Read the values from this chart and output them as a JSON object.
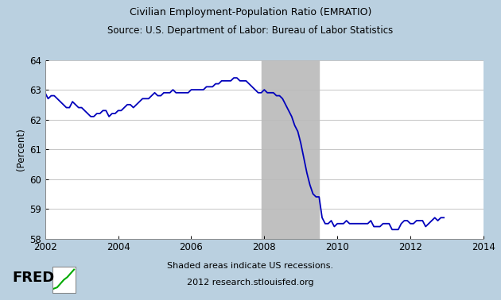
{
  "title_line1": "Civilian Employment-Population Ratio (EMRATIO)",
  "title_line2": "Source: U.S. Department of Labor: Bureau of Labor Statistics",
  "ylabel": "(Percent)",
  "bg_outer": "#bad0e0",
  "bg_plot": "#ffffff",
  "recession_color": "#c0c0c0",
  "line_color": "#0000bb",
  "line_width": 1.3,
  "xlim": [
    2002,
    2014
  ],
  "ylim": [
    58,
    64
  ],
  "yticks": [
    58,
    59,
    60,
    61,
    62,
    63,
    64
  ],
  "xticks": [
    2002,
    2004,
    2006,
    2008,
    2010,
    2012,
    2014
  ],
  "recession_start": 2007.917,
  "recession_end": 2009.5,
  "data": {
    "dates": [
      2002.0,
      2002.083,
      2002.167,
      2002.25,
      2002.333,
      2002.417,
      2002.5,
      2002.583,
      2002.667,
      2002.75,
      2002.833,
      2002.917,
      2003.0,
      2003.083,
      2003.167,
      2003.25,
      2003.333,
      2003.417,
      2003.5,
      2003.583,
      2003.667,
      2003.75,
      2003.833,
      2003.917,
      2004.0,
      2004.083,
      2004.167,
      2004.25,
      2004.333,
      2004.417,
      2004.5,
      2004.583,
      2004.667,
      2004.75,
      2004.833,
      2004.917,
      2005.0,
      2005.083,
      2005.167,
      2005.25,
      2005.333,
      2005.417,
      2005.5,
      2005.583,
      2005.667,
      2005.75,
      2005.833,
      2005.917,
      2006.0,
      2006.083,
      2006.167,
      2006.25,
      2006.333,
      2006.417,
      2006.5,
      2006.583,
      2006.667,
      2006.75,
      2006.833,
      2006.917,
      2007.0,
      2007.083,
      2007.167,
      2007.25,
      2007.333,
      2007.417,
      2007.5,
      2007.583,
      2007.667,
      2007.75,
      2007.833,
      2007.917,
      2008.0,
      2008.083,
      2008.167,
      2008.25,
      2008.333,
      2008.417,
      2008.5,
      2008.583,
      2008.667,
      2008.75,
      2008.833,
      2008.917,
      2009.0,
      2009.083,
      2009.167,
      2009.25,
      2009.333,
      2009.417,
      2009.5,
      2009.583,
      2009.667,
      2009.75,
      2009.833,
      2009.917,
      2010.0,
      2010.083,
      2010.167,
      2010.25,
      2010.333,
      2010.417,
      2010.5,
      2010.583,
      2010.667,
      2010.75,
      2010.833,
      2010.917,
      2011.0,
      2011.083,
      2011.167,
      2011.25,
      2011.333,
      2011.417,
      2011.5,
      2011.583,
      2011.667,
      2011.75,
      2011.833,
      2011.917,
      2012.0,
      2012.083,
      2012.167,
      2012.25,
      2012.333,
      2012.417,
      2012.5,
      2012.583,
      2012.667,
      2012.75,
      2012.833,
      2012.917
    ],
    "values": [
      62.9,
      62.7,
      62.8,
      62.8,
      62.7,
      62.6,
      62.5,
      62.4,
      62.4,
      62.6,
      62.5,
      62.4,
      62.4,
      62.3,
      62.2,
      62.1,
      62.1,
      62.2,
      62.2,
      62.3,
      62.3,
      62.1,
      62.2,
      62.2,
      62.3,
      62.3,
      62.4,
      62.5,
      62.5,
      62.4,
      62.5,
      62.6,
      62.7,
      62.7,
      62.7,
      62.8,
      62.9,
      62.8,
      62.8,
      62.9,
      62.9,
      62.9,
      63.0,
      62.9,
      62.9,
      62.9,
      62.9,
      62.9,
      63.0,
      63.0,
      63.0,
      63.0,
      63.0,
      63.1,
      63.1,
      63.1,
      63.2,
      63.2,
      63.3,
      63.3,
      63.3,
      63.3,
      63.4,
      63.4,
      63.3,
      63.3,
      63.3,
      63.2,
      63.1,
      63.0,
      62.9,
      62.9,
      63.0,
      62.9,
      62.9,
      62.9,
      62.8,
      62.8,
      62.7,
      62.5,
      62.3,
      62.1,
      61.8,
      61.6,
      61.2,
      60.7,
      60.2,
      59.8,
      59.5,
      59.4,
      59.4,
      58.7,
      58.5,
      58.5,
      58.6,
      58.4,
      58.5,
      58.5,
      58.5,
      58.6,
      58.5,
      58.5,
      58.5,
      58.5,
      58.5,
      58.5,
      58.5,
      58.6,
      58.4,
      58.4,
      58.4,
      58.5,
      58.5,
      58.5,
      58.3,
      58.3,
      58.3,
      58.5,
      58.6,
      58.6,
      58.5,
      58.5,
      58.6,
      58.6,
      58.6,
      58.4,
      58.5,
      58.6,
      58.7,
      58.6,
      58.7,
      58.7
    ]
  }
}
